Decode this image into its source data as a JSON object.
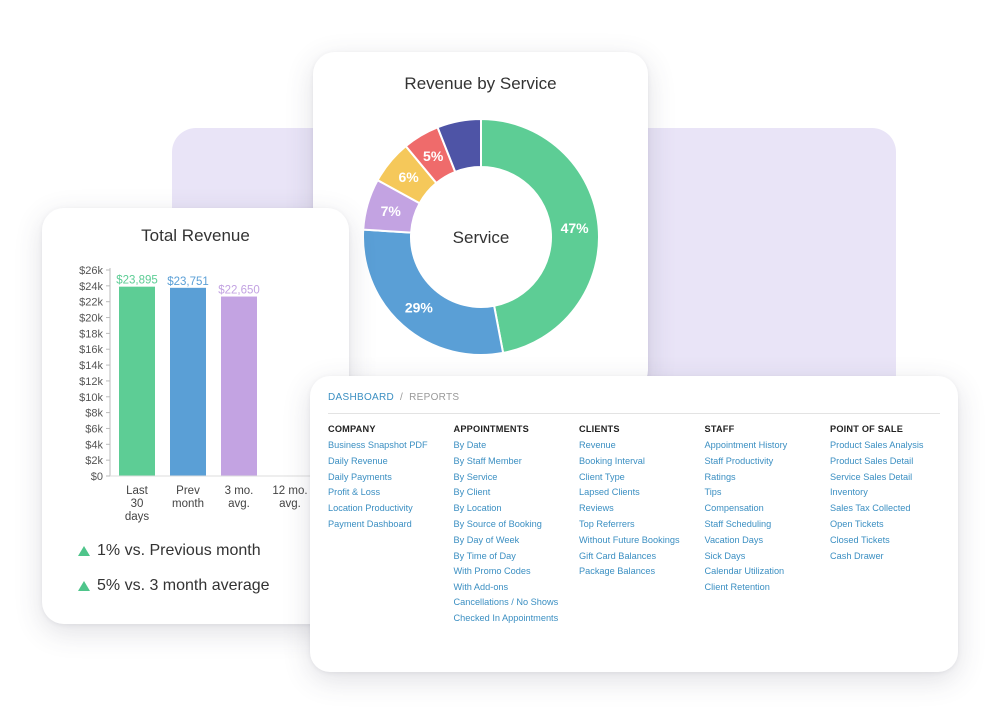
{
  "donut_card": {
    "title": "Revenue by Service",
    "center_label": "Service"
  },
  "revenue_card": {
    "title": "Total Revenue",
    "trends": [
      "1% vs. Previous month",
      "5% vs. 3 month average"
    ]
  },
  "reports": {
    "breadcrumb": {
      "dashboard": "DASHBOARD",
      "separator": "/",
      "reports": "REPORTS"
    },
    "columns": [
      {
        "heading": "COMPANY",
        "items": [
          "Business Snapshot PDF",
          "Daily Revenue",
          "Daily Payments",
          "Profit & Loss",
          "Location Productivity",
          "Payment Dashboard"
        ]
      },
      {
        "heading": "APPOINTMENTS",
        "items": [
          "By Date",
          "By Staff Member",
          "By Service",
          "By Client",
          "By Location",
          "By Source of Booking",
          "By Day of Week",
          "By Time of Day",
          "With Promo Codes",
          "With Add-ons",
          "Cancellations / No Shows",
          "Checked In Appointments"
        ]
      },
      {
        "heading": "CLIENTS",
        "items": [
          "Revenue",
          "Booking Interval",
          "Client Type",
          "Lapsed Clients",
          "Reviews",
          "Top Referrers",
          "Without Future Bookings",
          "Gift Card Balances",
          "Package Balances"
        ]
      },
      {
        "heading": "STAFF",
        "items": [
          "Appointment History",
          "Staff Productivity",
          "Ratings",
          "Tips",
          "Compensation",
          "Staff Scheduling",
          "Vacation Days",
          "Sick Days",
          "Calendar Utilization",
          "Client Retention"
        ]
      },
      {
        "heading": "POINT OF SALE",
        "items": [
          "Product Sales Analysis",
          "Product Sales Detail",
          "Service Sales Detail",
          "Inventory",
          "Sales Tax Collected",
          "Open Tickets",
          "Closed Tickets",
          "Cash Drawer"
        ]
      }
    ]
  },
  "colors": {
    "green": "#5dcd95",
    "blue": "#5a9fd6",
    "purple": "#c3a3e2",
    "yellow": "#f5c85a",
    "red": "#ef6b6b",
    "indigo": "#4e54a6",
    "trend_up": "#4fc58b",
    "link": "#3b8fc2",
    "background_panel": "#e9e4f7"
  },
  "chart_data": [
    {
      "type": "pie",
      "title": "Revenue by Service",
      "center_label": "Service",
      "slices": [
        {
          "label": "47%",
          "value": 47,
          "color": "#5dcd95"
        },
        {
          "label": "29%",
          "value": 29,
          "color": "#5a9fd6"
        },
        {
          "label": "7%",
          "value": 7,
          "color": "#c3a3e2"
        },
        {
          "label": "6%",
          "value": 6,
          "color": "#f5c85a"
        },
        {
          "label": "5%",
          "value": 5,
          "color": "#ef6b6b"
        },
        {
          "label": "",
          "value": 6,
          "color": "#4e54a6"
        }
      ]
    },
    {
      "type": "bar",
      "title": "Total Revenue",
      "categories": [
        "Last 30 days",
        "Prev month",
        "3 mo. avg.",
        "12 mo. avg."
      ],
      "category_lines": [
        [
          "Last",
          "30",
          "days"
        ],
        [
          "Prev",
          "month"
        ],
        [
          "3 mo.",
          "avg."
        ],
        [
          "12 mo.",
          "avg."
        ]
      ],
      "values": [
        23895,
        23751,
        22650,
        null
      ],
      "value_labels": [
        "$23,895",
        "$23,751",
        "$22,650",
        ""
      ],
      "colors": [
        "#5dcd95",
        "#5a9fd6",
        "#c3a3e2",
        "#cccccc"
      ],
      "yticks": [
        "$0",
        "$2k",
        "$4k",
        "$6k",
        "$8k",
        "$10k",
        "$12k",
        "$14k",
        "$16k",
        "$18k",
        "$20k",
        "$22k",
        "$24k",
        "$26k"
      ],
      "ylim": [
        0,
        26000
      ],
      "grid": false
    }
  ]
}
